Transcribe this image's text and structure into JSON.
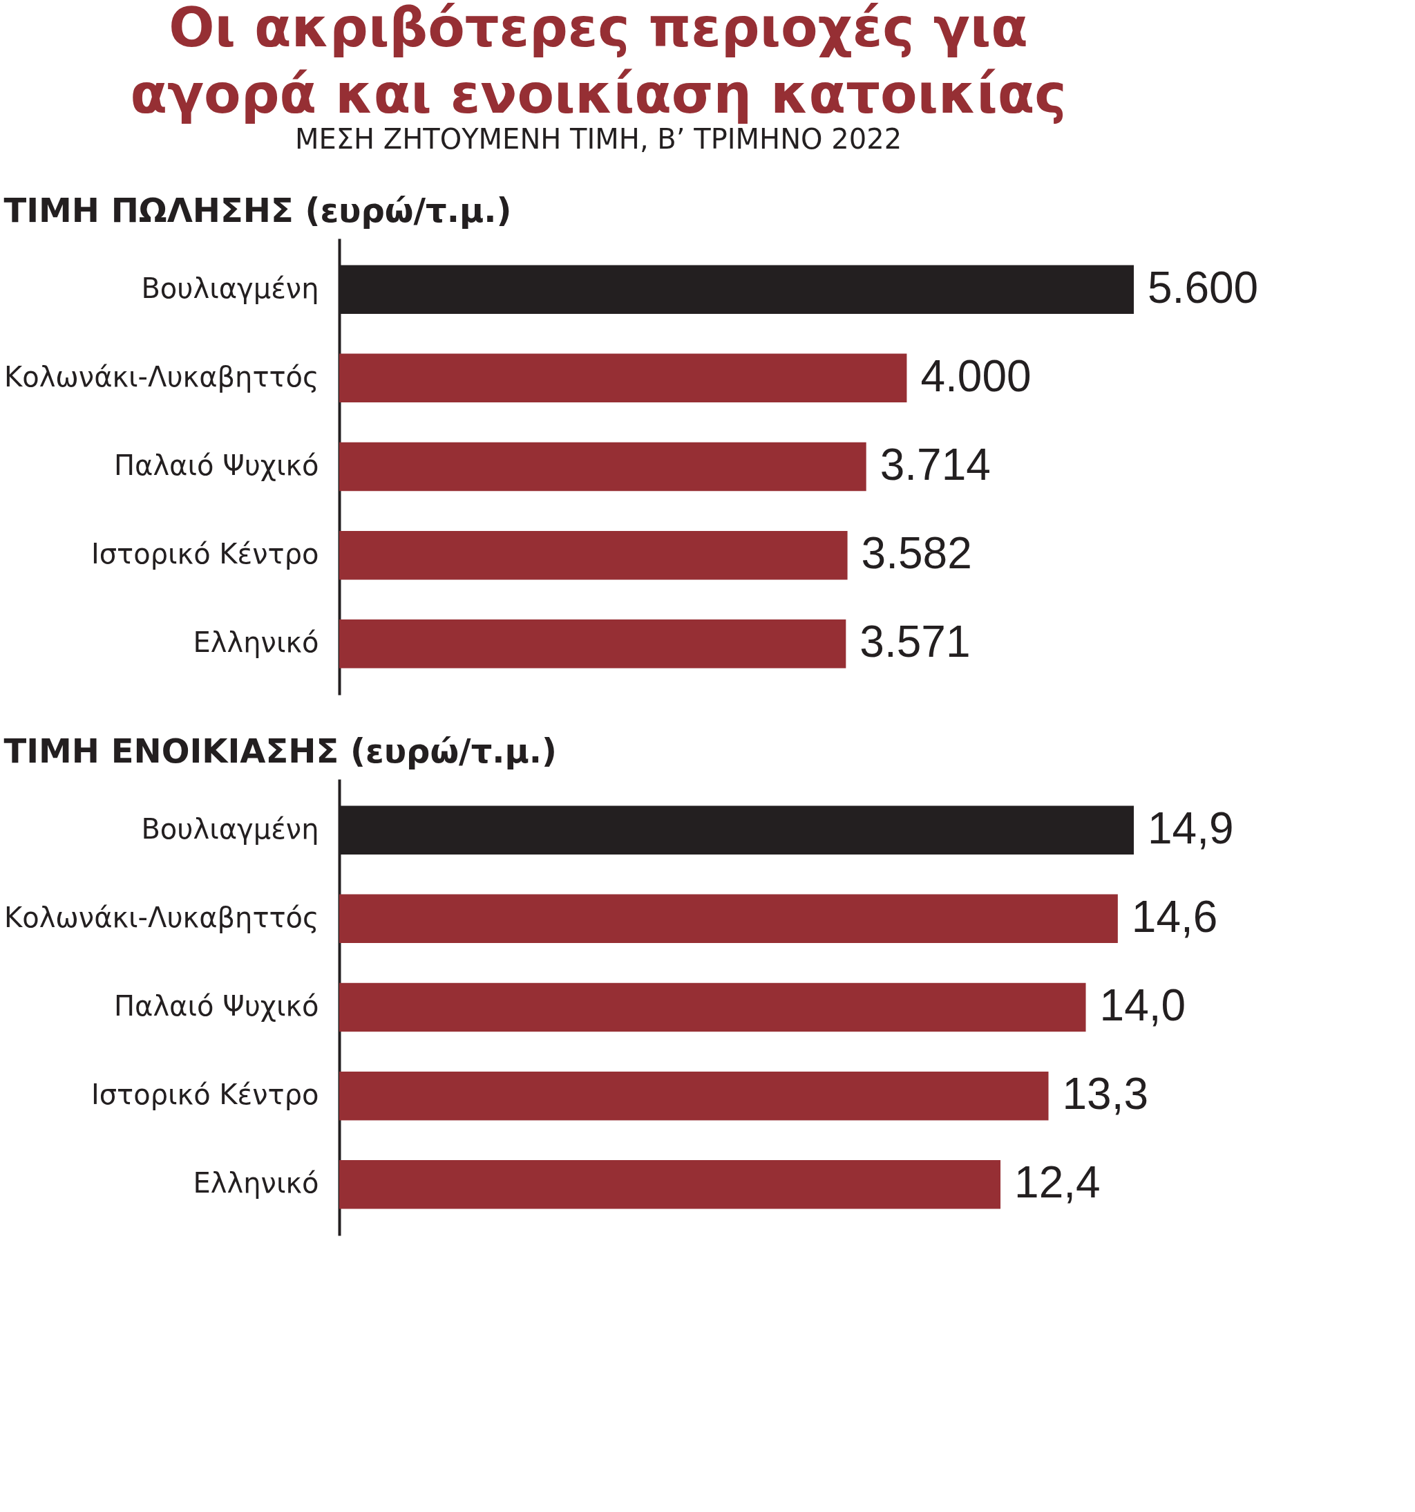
{
  "chart_data": [
    {
      "type": "other",
      "title": "Οι ακριβότερες περιοχές για αγορά και ενοικίαση κατοικίας",
      "subtitle": "ΜΕΣΗ ΖΗΤΟΥΜΕΝΗ ΤΙΜΗ, Β’ ΤΡΙΜΗΝΟ 2022"
    },
    {
      "type": "bar",
      "orientation": "horizontal",
      "title": "ΤΙΜΗ ΠΩΛΗΣΗΣ (ευρώ/τ.μ.)",
      "categories": [
        "Βουλιαγμένη",
        "Κολωνάκι-Λυκαβηττός",
        "Παλαιό Ψυχικό",
        "Ιστορικό Κέντρο",
        "Ελληνικό"
      ],
      "values": [
        5600,
        4000,
        3714,
        3582,
        3571
      ],
      "value_labels": [
        "5.600",
        "4.000",
        "3.714",
        "3.582",
        "3.571"
      ],
      "colors": [
        "#231f20",
        "#962f34",
        "#962f34",
        "#962f34",
        "#962f34"
      ],
      "tick_labels": "y"
    },
    {
      "type": "bar",
      "orientation": "horizontal",
      "title": "ΤΙΜΗ ΕΝΟΙΚΙΑΣΗΣ (ευρώ/τ.μ.)",
      "categories": [
        "Βουλιαγμένη",
        "Κολωνάκι-Λυκαβηττός",
        "Παλαιό Ψυχικό",
        "Ιστορικό Κέντρο",
        "Ελληνικό"
      ],
      "values": [
        14.9,
        14.6,
        14.0,
        13.3,
        12.4
      ],
      "value_labels": [
        "14,9",
        "14,6",
        "14,0",
        "13,3",
        "12,4"
      ],
      "colors": [
        "#231f20",
        "#962f34",
        "#962f34",
        "#962f34",
        "#962f34"
      ],
      "tick_labels": "y"
    }
  ]
}
